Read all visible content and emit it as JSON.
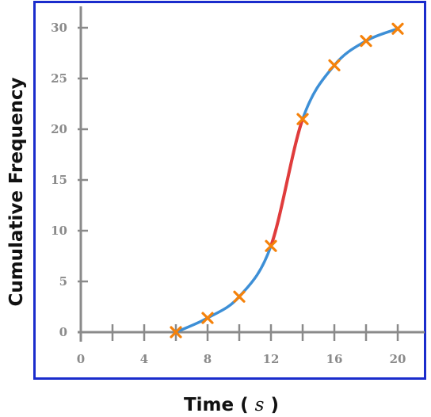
{
  "chart_data": {
    "type": "line",
    "title": "",
    "xlabel": "Time",
    "xlabel_unit": "s",
    "ylabel": "Cumulative Frequency",
    "xlim": [
      0,
      20
    ],
    "ylim": [
      0,
      30
    ],
    "x_ticks": [
      "0",
      "4",
      "8",
      "12",
      "16",
      "20"
    ],
    "x_minor_ticks": [
      2,
      6,
      10,
      14,
      18
    ],
    "y_ticks": [
      "0",
      "5",
      "10",
      "15",
      "20",
      "25",
      "30"
    ],
    "grid": false,
    "series": [
      {
        "x": [
          6,
          8,
          10,
          12,
          14,
          16,
          18,
          20
        ],
        "y": [
          0,
          1.4,
          3.5,
          8.5,
          21,
          26.3,
          28.7,
          29.9
        ]
      }
    ],
    "highlight_segment": {
      "x_from": 12,
      "x_to": 14
    },
    "colors": {
      "curve": "#3d8fd6",
      "highlight": "#e03c3c",
      "marker": "#f5820b",
      "axis": "#8a8a8a",
      "frame": "#1a2ccc"
    }
  }
}
